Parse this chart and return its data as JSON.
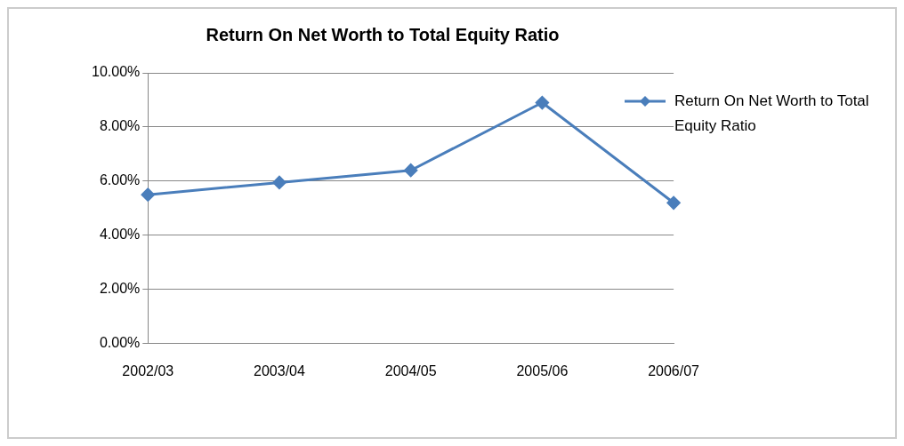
{
  "chart_data": {
    "type": "line",
    "title": "Return On Net Worth to Total Equity Ratio",
    "categories": [
      "2002/03",
      "2003/04",
      "2004/05",
      "2005/06",
      "2006/07"
    ],
    "series": [
      {
        "name": "Return On Net Worth to Total Equity Ratio",
        "color": "#4a7ebb",
        "values": [
          5.5,
          5.95,
          6.4,
          8.9,
          5.2
        ]
      }
    ],
    "ylim": [
      0,
      10
    ],
    "yticks": [
      {
        "value": 0,
        "label": "0.00%"
      },
      {
        "value": 2,
        "label": "2.00%"
      },
      {
        "value": 4,
        "label": "4.00%"
      },
      {
        "value": 6,
        "label": "6.00%"
      },
      {
        "value": 8,
        "label": "8.00%"
      },
      {
        "value": 10,
        "label": "10.00%"
      }
    ],
    "grid": "y",
    "legend": "top right",
    "marker": "diamond",
    "line_style": "solid"
  }
}
